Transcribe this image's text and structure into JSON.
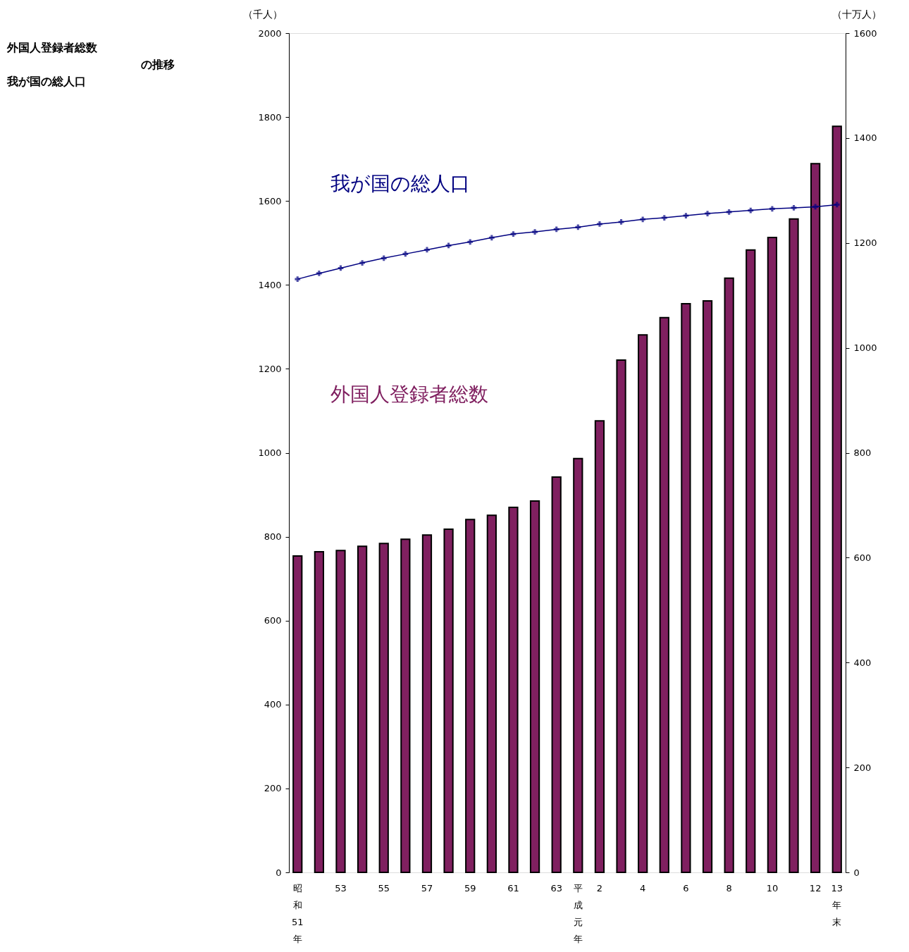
{
  "chart_data": {
    "type": "bar",
    "title": "外国人登録者総数",
    "subtitle": "我が国の総人口",
    "annotations": [
      "の推移"
    ],
    "ylabel": "（千人）",
    "y2label": "（十万人）",
    "categories": [
      "昭和51年",
      null,
      "53",
      null,
      "55",
      null,
      "57",
      null,
      "59",
      null,
      "61",
      null,
      "63",
      "平成元年",
      "2",
      null,
      "4",
      null,
      "6",
      null,
      "8",
      null,
      "10",
      null,
      "12",
      "13年末"
    ],
    "series": [
      {
        "name": "外国人登録者総数",
        "color": "#802060",
        "values": [
          754,
          764,
          767,
          777,
          784,
          794,
          804,
          818,
          841,
          851,
          870,
          885,
          942,
          986,
          1076,
          1221,
          1281,
          1322,
          1355,
          1362,
          1416,
          1483,
          1513,
          1557,
          1689,
          1778
        ]
      },
      {
        "name": "我が国の総人口",
        "type": "line",
        "axis": "y2",
        "color": "#000080",
        "values": [
          1131,
          1142,
          1152,
          1162,
          1171,
          1179,
          1187,
          1195,
          1202,
          1210,
          1217,
          1221,
          1226,
          1230,
          1236,
          1240,
          1245,
          1248,
          1252,
          1256,
          1259,
          1262,
          1265,
          1267,
          1269,
          1273
        ]
      }
    ],
    "ylim": [
      0,
      2000
    ],
    "yticks": [
      0,
      200,
      400,
      600,
      800,
      1000,
      1200,
      1400,
      1600,
      1800,
      2000
    ],
    "y2lim": [
      0,
      1600
    ],
    "y2ticks": [
      0,
      200,
      400,
      600,
      800,
      1000,
      1200,
      1400,
      1600
    ],
    "marker": "cross",
    "grid": false
  }
}
